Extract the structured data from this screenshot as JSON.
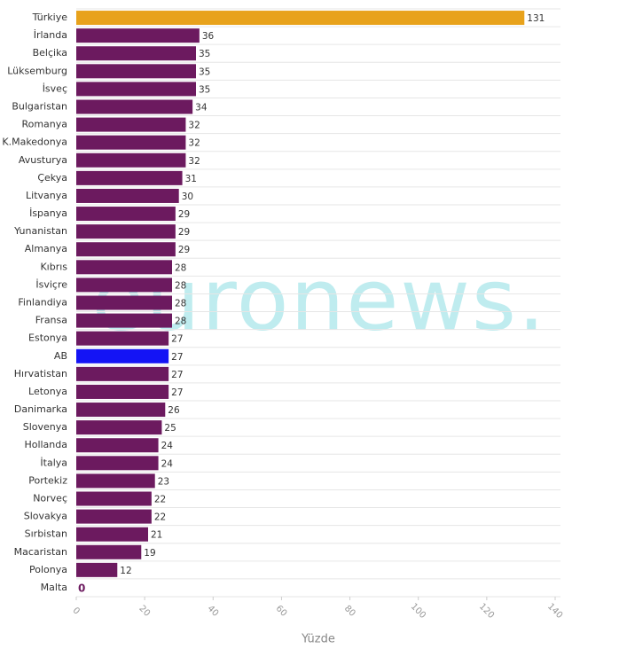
{
  "chart_data": {
    "type": "hbar",
    "categories": [
      "Türkiye",
      "İrlanda",
      "Belçika",
      "Lüksemburg",
      "İsveç",
      "Bulgaristan",
      "Romanya",
      "K.Makedonya",
      "Avusturya",
      "Çekya",
      "Litvanya",
      "İspanya",
      "Yunanistan",
      "Almanya",
      "Kıbrıs",
      "İsviçre",
      "Finlandiya",
      "Fransa",
      "Estonya",
      "AB",
      "Hırvatistan",
      "Letonya",
      "Danimarka",
      "Slovenya",
      "Hollanda",
      "İtalya",
      "Portekiz",
      "Norveç",
      "Slovakya",
      "Sırbistan",
      "Macaristan",
      "Polonya",
      "Malta"
    ],
    "values": [
      131,
      36,
      35,
      35,
      35,
      34,
      32,
      32,
      32,
      31,
      30,
      29,
      29,
      29,
      28,
      28,
      28,
      28,
      27,
      27,
      27,
      27,
      26,
      25,
      24,
      24,
      23,
      22,
      22,
      21,
      19,
      12,
      0
    ],
    "colors": [
      "#e8a21b",
      "#6c1a5f",
      "#6c1a5f",
      "#6c1a5f",
      "#6c1a5f",
      "#6c1a5f",
      "#6c1a5f",
      "#6c1a5f",
      "#6c1a5f",
      "#6c1a5f",
      "#6c1a5f",
      "#6c1a5f",
      "#6c1a5f",
      "#6c1a5f",
      "#6c1a5f",
      "#6c1a5f",
      "#6c1a5f",
      "#6c1a5f",
      "#6c1a5f",
      "#1414f5",
      "#6c1a5f",
      "#6c1a5f",
      "#6c1a5f",
      "#6c1a5f",
      "#6c1a5f",
      "#6c1a5f",
      "#6c1a5f",
      "#6c1a5f",
      "#6c1a5f",
      "#6c1a5f",
      "#6c1a5f",
      "#6c1a5f",
      "#6c1a5f"
    ],
    "xlim": [
      0,
      140
    ],
    "xticks": [
      0,
      20,
      40,
      60,
      80,
      100,
      120,
      140
    ],
    "x_label": "Yüzde",
    "watermark": "euronews."
  }
}
